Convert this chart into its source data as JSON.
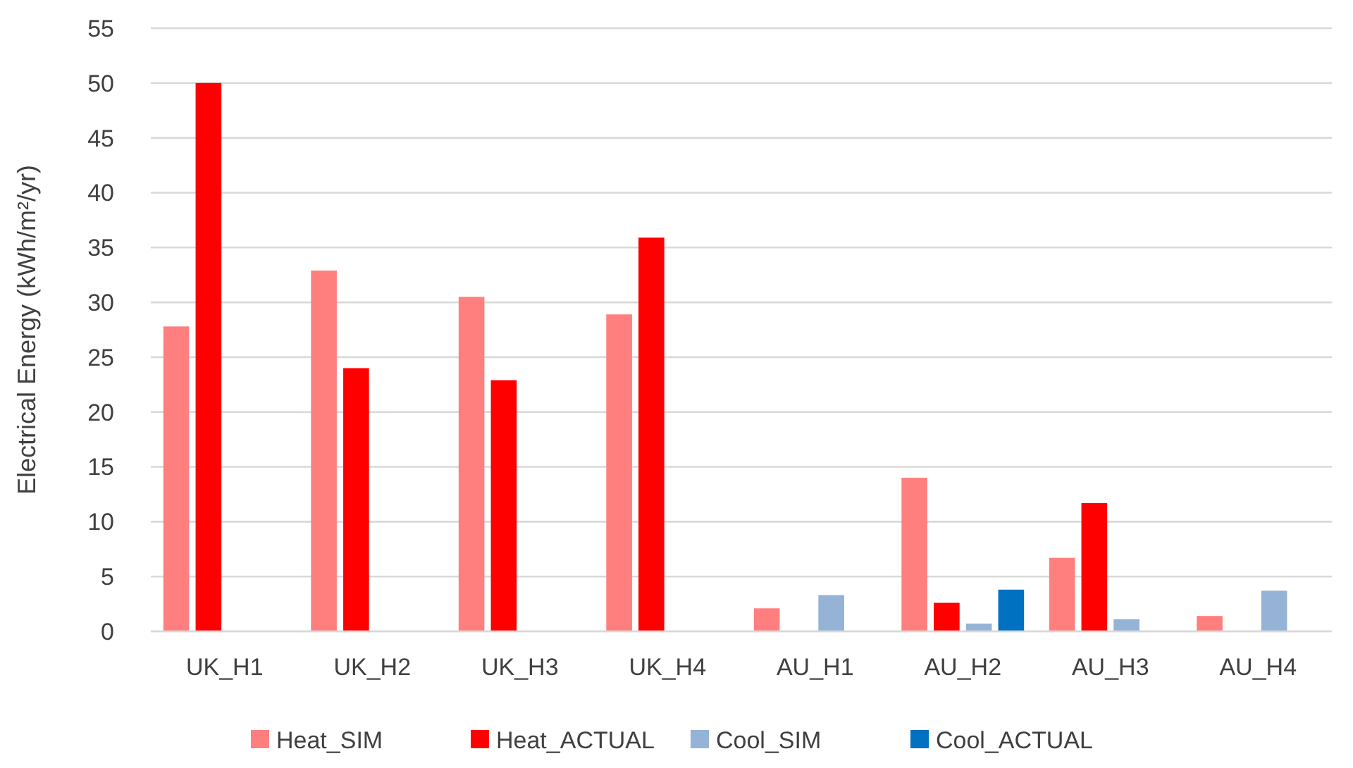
{
  "chart_data": {
    "type": "bar",
    "ylabel": "Electrical Energy (kWh/m²/yr)",
    "categories": [
      "UK_H1",
      "UK_H2",
      "UK_H3",
      "UK_H4",
      "AU_H1",
      "AU_H2",
      "AU_H3",
      "AU_H4"
    ],
    "series": [
      {
        "name": "Heat_SIM",
        "color": "#ff7f7f",
        "values": [
          27.8,
          32.9,
          30.5,
          28.9,
          2.1,
          14.0,
          6.7,
          1.4
        ]
      },
      {
        "name": "Heat_ACTUAL",
        "color": "#ff0000",
        "values": [
          50,
          24.0,
          22.9,
          35.9,
          null,
          2.6,
          11.7,
          null
        ]
      },
      {
        "name": "Cool_SIM",
        "color": "#95b3d7",
        "values": [
          null,
          null,
          null,
          null,
          3.3,
          0.7,
          1.1,
          3.7
        ]
      },
      {
        "name": "Cool_ACTUAL",
        "color": "#0070c0",
        "values": [
          null,
          null,
          null,
          null,
          null,
          3.8,
          null,
          null
        ]
      }
    ],
    "ylim": [
      0,
      55
    ],
    "yticks": [
      0,
      5,
      10,
      15,
      20,
      25,
      30,
      35,
      40,
      45,
      50,
      55
    ],
    "grid": "y",
    "legend": "bottom"
  }
}
